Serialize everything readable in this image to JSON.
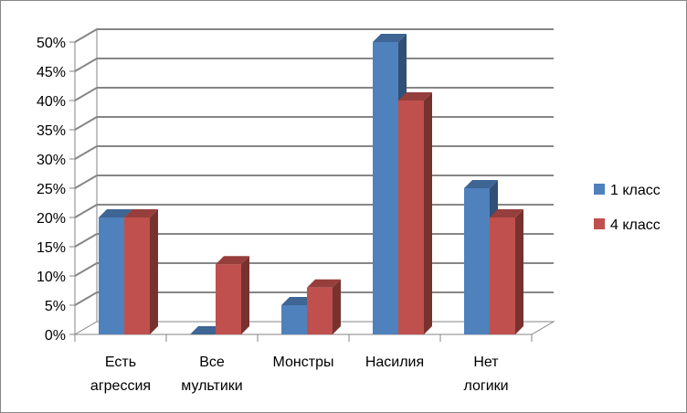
{
  "chart_data": {
    "type": "bar",
    "title": "",
    "xlabel": "",
    "ylabel": "",
    "ylim": [
      0,
      50
    ],
    "ytick_step": 5,
    "ytick_suffix": "%",
    "grid": true,
    "legend_placement": "right",
    "categories": [
      [
        "Есть",
        "агрессия"
      ],
      [
        "Все",
        "мультики"
      ],
      [
        "Монстры"
      ],
      [
        "Насилия"
      ],
      [
        "Нет",
        "логики"
      ]
    ],
    "series": [
      {
        "name": "1 класс",
        "color": "#4F81BD",
        "values": [
          20,
          0,
          5,
          50,
          25
        ]
      },
      {
        "name": "4 класс",
        "color": "#C0504D",
        "values": [
          20,
          12,
          8,
          40,
          20
        ]
      }
    ]
  }
}
